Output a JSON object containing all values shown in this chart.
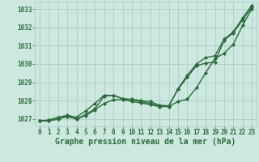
{
  "background_color": "#cce8df",
  "grid_color": "#aacfc7",
  "line_color": "#2d6b3c",
  "title": "Graphe pression niveau de la mer (hPa)",
  "xlim": [
    -0.5,
    23.5
  ],
  "ylim": [
    1026.6,
    1033.4
  ],
  "yticks": [
    1027,
    1028,
    1029,
    1030,
    1031,
    1032,
    1033
  ],
  "xticks": [
    0,
    1,
    2,
    3,
    4,
    5,
    6,
    7,
    8,
    9,
    10,
    11,
    12,
    13,
    14,
    15,
    16,
    17,
    18,
    19,
    20,
    21,
    22,
    23
  ],
  "series1": [
    1026.9,
    1026.9,
    1027.0,
    1027.15,
    1027.0,
    1027.25,
    1027.55,
    1028.25,
    1028.3,
    1028.1,
    1028.08,
    1028.0,
    1027.95,
    1027.75,
    1027.72,
    1028.62,
    1029.28,
    1029.9,
    1030.05,
    1030.1,
    1031.3,
    1031.7,
    1032.4,
    1033.1
  ],
  "series2": [
    1026.9,
    1026.95,
    1027.1,
    1027.2,
    1027.1,
    1027.45,
    1027.85,
    1028.3,
    1028.28,
    1028.12,
    1028.05,
    1027.95,
    1027.85,
    1027.7,
    1027.7,
    1028.65,
    1029.38,
    1030.0,
    1030.35,
    1030.45,
    1031.35,
    1031.75,
    1032.5,
    1033.2
  ],
  "series3": [
    1026.9,
    1026.9,
    1027.0,
    1027.15,
    1027.0,
    1027.18,
    1027.5,
    1027.85,
    1028.05,
    1028.06,
    1027.95,
    1027.88,
    1027.78,
    1027.68,
    1027.68,
    1027.95,
    1028.08,
    1028.7,
    1029.52,
    1030.3,
    1030.58,
    1031.08,
    1032.1,
    1033.0
  ],
  "marker": "D",
  "marker_size": 2.2,
  "line_width": 1.0,
  "title_fontsize": 7.0,
  "tick_fontsize": 5.5
}
